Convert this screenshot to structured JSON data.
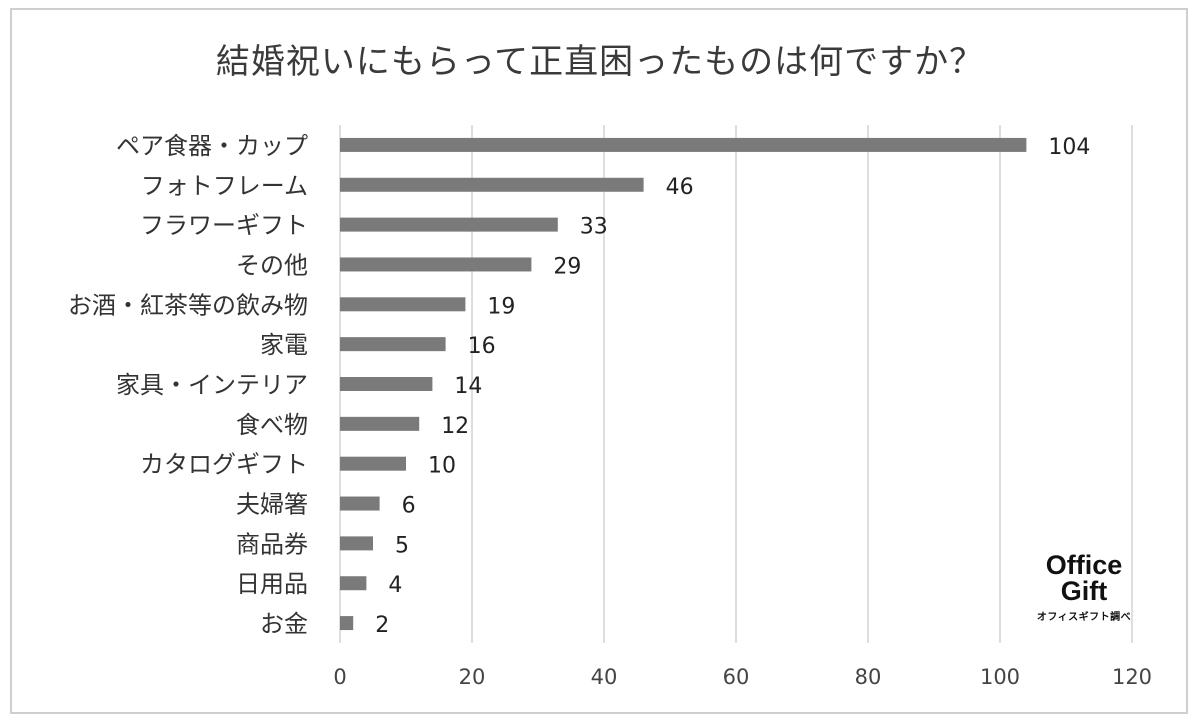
{
  "chart_data": {
    "type": "bar",
    "orientation": "horizontal",
    "title": "結婚祝いにもらって正直困ったものは何ですか？",
    "categories": [
      "ペア食器・カップ",
      "フォトフレーム",
      "フラワーギフト",
      "その他",
      "お酒・紅茶等の飲み物",
      "家電",
      "家具・インテリア",
      "食べ物",
      "カタログギフト",
      "夫婦箸",
      "商品券",
      "日用品",
      "お金"
    ],
    "values": [
      104,
      46,
      33,
      29,
      19,
      16,
      14,
      12,
      10,
      6,
      5,
      4,
      2
    ],
    "data_labels": [
      "104",
      "46",
      "33",
      "29",
      "19",
      "16",
      "14",
      "12",
      "10",
      "6",
      "5",
      "4",
      "2"
    ],
    "xlim": [
      0,
      120
    ],
    "x_ticks": [
      "0",
      "20",
      "40",
      "60",
      "80",
      "100",
      "120"
    ],
    "grid": "vertical",
    "bar_color": "#7a7a7a",
    "grid_color": "#d4d4d4"
  },
  "brand": {
    "line1": "Office",
    "line2": "Gift",
    "sub": "オフィスギフト調べ"
  }
}
